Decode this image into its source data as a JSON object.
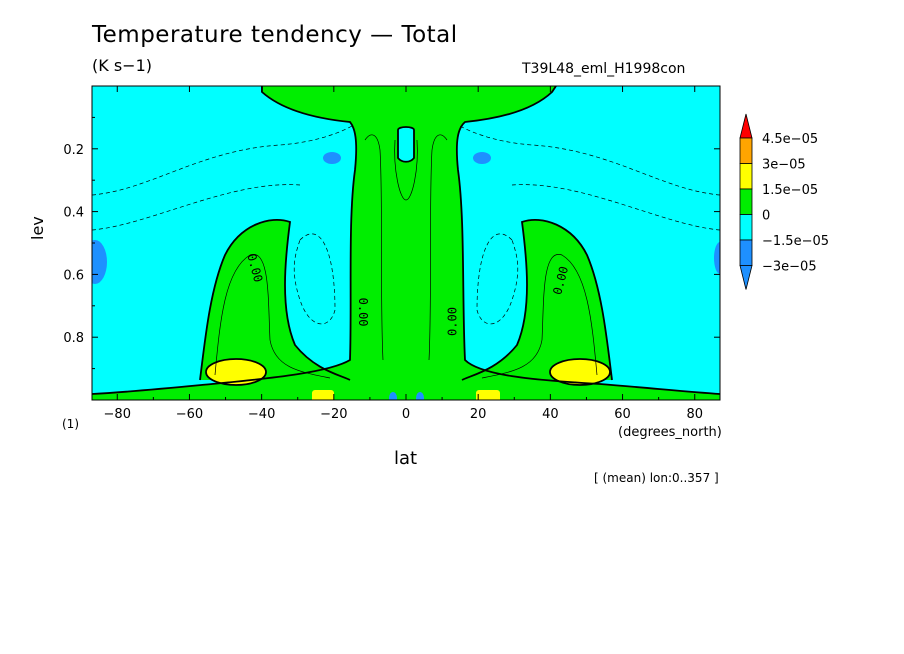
{
  "chart_data": {
    "type": "heatmap",
    "title": "Temperature tendency — Total",
    "units": "(K s−1)",
    "run_label": "T39L48_eml_H1998con",
    "xlabel": "lat",
    "x_unit_label": "(degrees_north)",
    "ylabel": "lev",
    "y_unit_label": "(1)",
    "annotation": "[ (mean) lon:0..357 ]",
    "xlim": [
      -87,
      87
    ],
    "ylim": [
      0.0,
      1.0
    ],
    "y_inverted": true,
    "x_ticks": [
      -80,
      -60,
      -40,
      -20,
      0,
      20,
      40,
      60,
      80
    ],
    "x_tick_labels": [
      "−80",
      "−60",
      "−40",
      "−20",
      "0",
      "20",
      "40",
      "60",
      "80"
    ],
    "y_ticks": [
      0.2,
      0.4,
      0.6,
      0.8
    ],
    "y_tick_labels": [
      "0.2",
      "0.4",
      "0.6",
      "0.8"
    ],
    "contour_labels": [
      {
        "text": "0.00",
        "lat": -42,
        "lev": 0.58,
        "angle": 75
      },
      {
        "text": "0.00",
        "lat": -12,
        "lev": 0.72,
        "angle": 90
      },
      {
        "text": "0.00",
        "lat": 13,
        "lev": 0.75,
        "angle": -90
      },
      {
        "text": "0.00",
        "lat": 43,
        "lev": 0.62,
        "angle": -75
      }
    ],
    "colorbar": {
      "levels": [
        "−3e−05",
        "−1.5e−05",
        "0",
        "1.5e−05",
        "3e−05",
        "4.5e−05"
      ],
      "colors": [
        "#1e90ff",
        "#00ffff",
        "#00ee00",
        "#ffff00",
        "#ffa500",
        "#ff0000"
      ],
      "under_color": "#1e90ff",
      "over_color": "#ff0000"
    },
    "fill_colors": {
      "negative_weak": "#00ffff",
      "negative_strong": "#1e90ff",
      "positive_weak": "#00ee00",
      "positive_strong": "#ffff00"
    }
  }
}
